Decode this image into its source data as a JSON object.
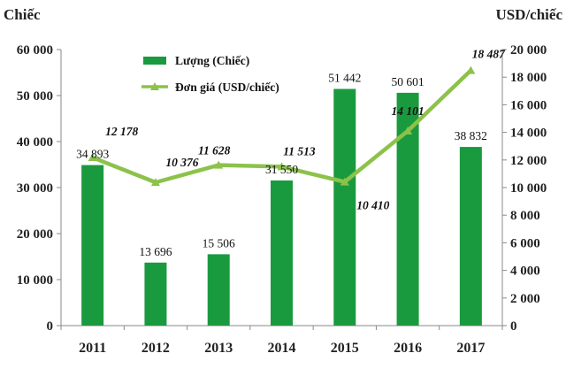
{
  "chart_data": {
    "type": "bar+line",
    "categories": [
      "2011",
      "2012",
      "2013",
      "2014",
      "2015",
      "2016",
      "2017"
    ],
    "series": [
      {
        "name": "Lượng (Chiếc)",
        "type": "bar",
        "axis": "left",
        "values": [
          34893,
          13696,
          15506,
          31550,
          51442,
          50601,
          38832
        ],
        "labels": [
          "34 893",
          "13 696",
          "15 506",
          "31 550",
          "51 442",
          "50 601",
          "38 832"
        ],
        "color": "#1a9a3e"
      },
      {
        "name": "Đơn giá (USD/chiếc)",
        "type": "line",
        "axis": "right",
        "values": [
          12178,
          10376,
          11628,
          11513,
          10410,
          14101,
          18487
        ],
        "labels": [
          "12 178",
          "10 376",
          "11 628",
          "11 513",
          "10 410",
          "14 101",
          "18 487"
        ],
        "color": "#8cc24a"
      }
    ],
    "left_axis": {
      "unit": "Chiếc",
      "ylim": [
        0,
        60000
      ],
      "ticks": [
        0,
        10000,
        20000,
        30000,
        40000,
        50000,
        60000
      ],
      "tick_labels": [
        "0",
        "10 000",
        "20 000",
        "30 000",
        "40 000",
        "50 000",
        "60 000"
      ]
    },
    "right_axis": {
      "unit": "USD/chiếc",
      "ylim": [
        0,
        20000
      ],
      "ticks": [
        0,
        2000,
        4000,
        6000,
        8000,
        10000,
        12000,
        14000,
        16000,
        18000,
        20000
      ],
      "tick_labels": [
        "0",
        "2 000",
        "4 000",
        "6 000",
        "8 000",
        "10 000",
        "12 000",
        "14 000",
        "16 000",
        "18 000",
        "20 000"
      ]
    },
    "grid": false,
    "legend_position": "top-left"
  }
}
